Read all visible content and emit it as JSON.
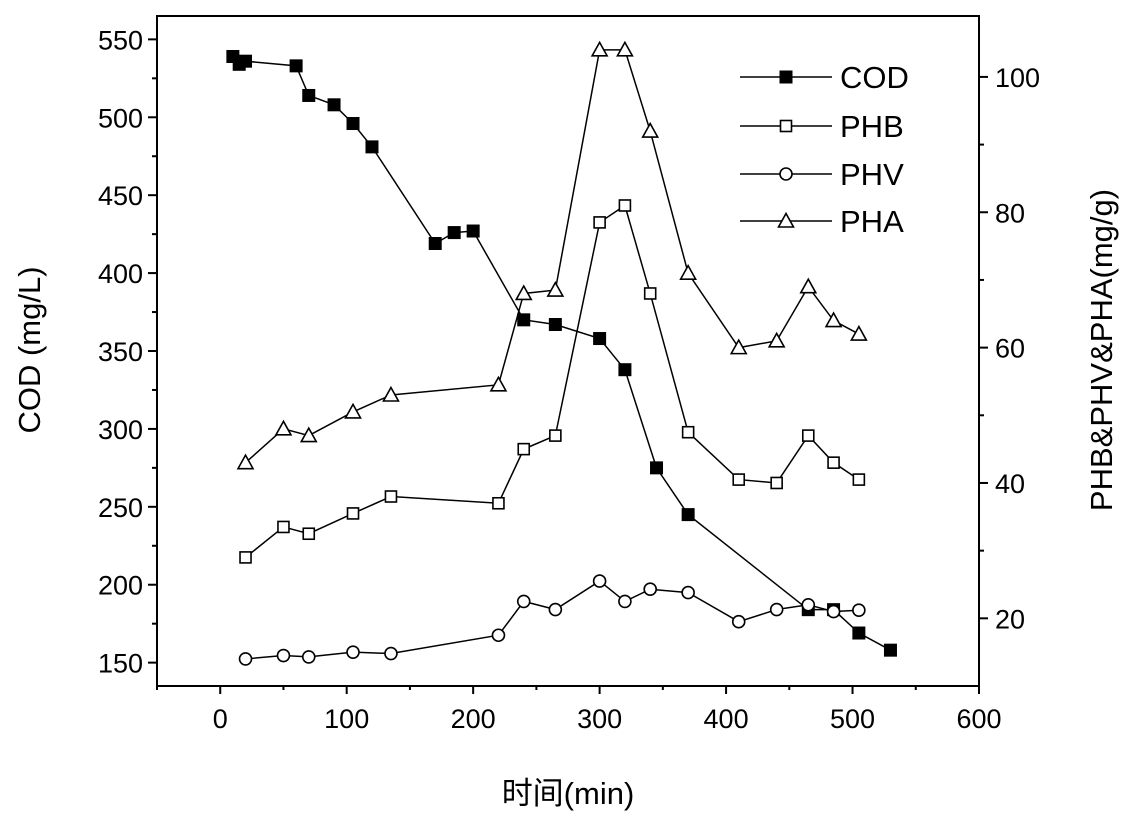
{
  "chart_data": {
    "type": "line",
    "xlabel": "时间(min)",
    "ylabel_left": "COD (mg/L)",
    "ylabel_right": "PHB&PHV&PHA(mg/g)",
    "xlim": [
      -50,
      600
    ],
    "ylim_left": [
      135,
      565
    ],
    "ylim_right": [
      10,
      109
    ],
    "x_ticks": [
      0,
      100,
      200,
      300,
      400,
      500,
      600
    ],
    "y_left_ticks": [
      150,
      200,
      250,
      300,
      350,
      400,
      450,
      500,
      550
    ],
    "y_right_ticks": [
      20,
      40,
      60,
      80,
      100
    ],
    "legend_position": "top-right",
    "grid": false,
    "series": [
      {
        "name": "COD",
        "axis": "left",
        "marker": "filled-square",
        "color": "#000000",
        "x": [
          10,
          15,
          20,
          60,
          70,
          90,
          105,
          120,
          170,
          185,
          200,
          240,
          265,
          300,
          320,
          345,
          370,
          465,
          485,
          505,
          530
        ],
        "y": [
          539,
          534,
          536,
          533,
          514,
          508,
          496,
          481,
          419,
          426,
          427,
          370,
          367,
          358,
          338,
          275,
          245,
          184,
          184,
          169,
          158
        ]
      },
      {
        "name": "PHB",
        "axis": "right",
        "marker": "open-square",
        "color": "#000000",
        "x": [
          20,
          50,
          70,
          105,
          135,
          220,
          240,
          265,
          300,
          320,
          340,
          370,
          410,
          440,
          465,
          485,
          505
        ],
        "y": [
          29,
          33.5,
          32.5,
          35.5,
          38,
          37,
          45,
          47,
          78.5,
          81,
          68,
          47.5,
          40.5,
          40,
          47,
          43,
          40.5
        ]
      },
      {
        "name": "PHV",
        "axis": "right",
        "marker": "open-circle",
        "color": "#000000",
        "x": [
          20,
          50,
          70,
          105,
          135,
          220,
          240,
          265,
          300,
          320,
          340,
          370,
          410,
          440,
          465,
          485,
          505
        ],
        "y": [
          14,
          14.5,
          14.3,
          15,
          14.8,
          17.5,
          22.5,
          21.3,
          25.5,
          22.5,
          24.3,
          23.8,
          19.5,
          21.3,
          22,
          21,
          21.2
        ]
      },
      {
        "name": "PHA",
        "axis": "right",
        "marker": "open-triangle",
        "color": "#000000",
        "x": [
          20,
          50,
          70,
          105,
          135,
          220,
          240,
          265,
          300,
          320,
          340,
          370,
          410,
          440,
          465,
          485,
          505
        ],
        "y": [
          43,
          48,
          47,
          50.5,
          53,
          54.5,
          68,
          68.5,
          104,
          104,
          92,
          71,
          60,
          61,
          69,
          64,
          62
        ]
      }
    ]
  }
}
